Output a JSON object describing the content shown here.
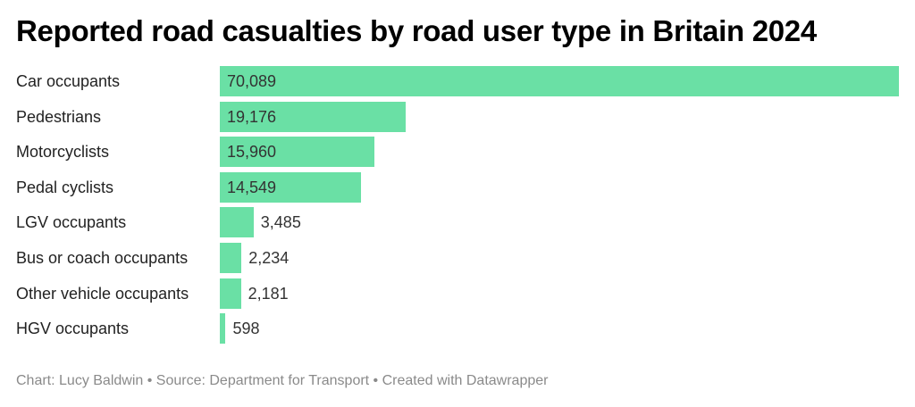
{
  "chart_data": {
    "type": "bar",
    "orientation": "horizontal",
    "title": "Reported road casualties by road user type in Britain 2024",
    "categories": [
      "Car occupants",
      "Pedestrians",
      "Motorcyclists",
      "Pedal cyclists",
      "LGV occupants",
      "Bus or coach occupants",
      "Other vehicle occupants",
      "HGV occupants"
    ],
    "values": [
      70089,
      19176,
      15960,
      14549,
      3485,
      2234,
      2181,
      598
    ],
    "value_labels": [
      "70,089",
      "19,176",
      "15,960",
      "14,549",
      "3,485",
      "2,234",
      "2,181",
      "598"
    ],
    "xlabel": "",
    "ylabel": "",
    "xlim": [
      0,
      70089
    ],
    "grid": false,
    "legend": "none",
    "bar_color": "#6ae0a5"
  },
  "footer": "Chart: Lucy Baldwin • Source: Department for Transport • Created with Datawrapper"
}
